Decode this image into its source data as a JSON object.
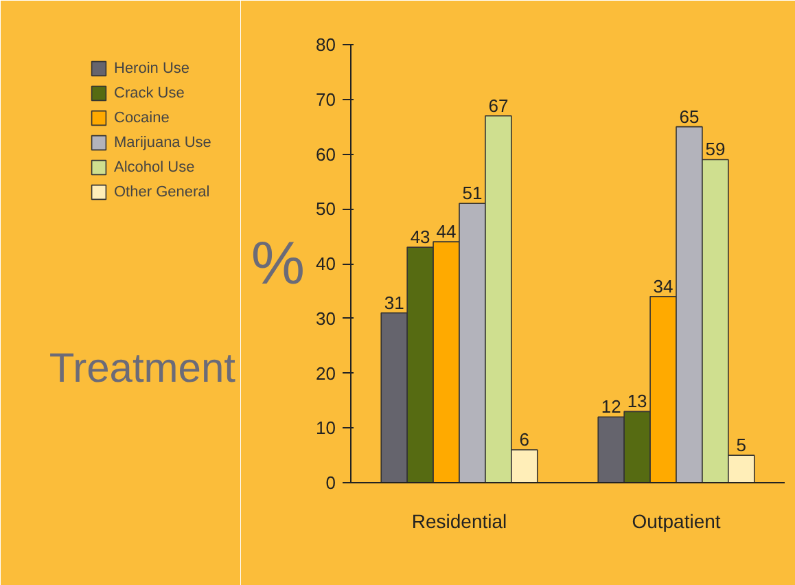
{
  "chart_data": {
    "type": "bar",
    "ylabel": "%",
    "annotations": [
      "Treatment"
    ],
    "categories": [
      "Residential",
      "Outpatient"
    ],
    "series": [
      {
        "name": "Heroin Use",
        "color": "#65646d",
        "values": [
          31,
          12
        ]
      },
      {
        "name": "Crack Use",
        "color": "#566b12",
        "values": [
          43,
          13
        ]
      },
      {
        "name": "Cocaine",
        "color": "#ffaa00",
        "values": [
          44,
          34
        ]
      },
      {
        "name": "Marijuana Use",
        "color": "#b3b3bb",
        "values": [
          51,
          65
        ]
      },
      {
        "name": "Alcohol Use",
        "color": "#cfdf8f",
        "values": [
          67,
          59
        ]
      },
      {
        "name": "Other General",
        "color": "#ffeeb8",
        "values": [
          6,
          5
        ]
      }
    ],
    "ylim": [
      0,
      80
    ],
    "yticks": [
      0,
      10,
      20,
      30,
      40,
      50,
      60,
      70,
      80
    ],
    "data_labels": true,
    "grid": false,
    "legend": "left"
  }
}
